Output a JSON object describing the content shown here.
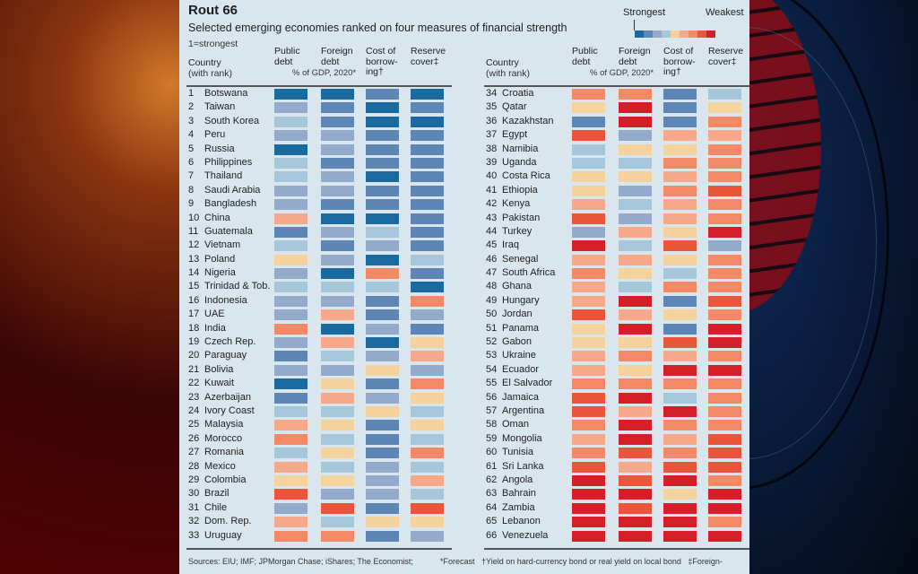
{
  "background": {
    "left": "orange-red studio glow",
    "right": "blue globe graphic"
  },
  "chart_data": {
    "type": "heatmap",
    "title": "Rout 66",
    "subtitle": "Selected emerging economies ranked on four measures of financial strength",
    "note": "1=strongest",
    "legend": {
      "low_label": "Strongest",
      "high_label": "Weakest",
      "placement": "top-right",
      "levels": 9,
      "colors": [
        "#1a6aa0",
        "#5e86b5",
        "#94aacb",
        "#a6c6da",
        "#f3d29d",
        "#f6a98a",
        "#f28a68",
        "#e9563c",
        "#d21f2a"
      ]
    },
    "country_header": "Country",
    "country_subheader": "(with rank)",
    "columns": [
      {
        "key": "public_debt",
        "label_lines": [
          "Public",
          "debt"
        ]
      },
      {
        "key": "foreign_debt",
        "label_lines": [
          "Foreign",
          "debt"
        ]
      },
      {
        "key": "cost_of_borrowing",
        "label_lines": [
          "Cost of",
          "borrow-",
          "ing†"
        ]
      },
      {
        "key": "reserve_cover",
        "label_lines": [
          "Reserve",
          "cover‡"
        ]
      }
    ],
    "unit_note": "% of GDP, 2020*",
    "value_meaning": "color level 1 (strongest) to 9 (weakest)",
    "rows": [
      {
        "rank": 1,
        "country": "Botswana",
        "values": [
          1,
          1,
          2,
          1
        ]
      },
      {
        "rank": 2,
        "country": "Taiwan",
        "values": [
          3,
          2,
          1,
          2
        ]
      },
      {
        "rank": 3,
        "country": "South Korea",
        "values": [
          4,
          2,
          1,
          1
        ]
      },
      {
        "rank": 4,
        "country": "Peru",
        "values": [
          3,
          3,
          2,
          2
        ]
      },
      {
        "rank": 5,
        "country": "Russia",
        "values": [
          1,
          3,
          2,
          2
        ]
      },
      {
        "rank": 6,
        "country": "Philippines",
        "values": [
          4,
          2,
          2,
          2
        ]
      },
      {
        "rank": 7,
        "country": "Thailand",
        "values": [
          4,
          3,
          1,
          2
        ]
      },
      {
        "rank": 8,
        "country": "Saudi Arabia",
        "values": [
          3,
          3,
          2,
          2
        ]
      },
      {
        "rank": 9,
        "country": "Bangladesh",
        "values": [
          3,
          2,
          2,
          2
        ]
      },
      {
        "rank": 10,
        "country": "China",
        "values": [
          6,
          1,
          1,
          2
        ]
      },
      {
        "rank": 11,
        "country": "Guatemala",
        "values": [
          2,
          3,
          4,
          2
        ]
      },
      {
        "rank": 12,
        "country": "Vietnam",
        "values": [
          4,
          2,
          3,
          2
        ]
      },
      {
        "rank": 13,
        "country": "Poland",
        "values": [
          5,
          3,
          1,
          4
        ]
      },
      {
        "rank": 14,
        "country": "Nigeria",
        "values": [
          3,
          1,
          7,
          2
        ]
      },
      {
        "rank": 15,
        "country": "Trinidad & Tob.",
        "values": [
          4,
          4,
          4,
          1
        ]
      },
      {
        "rank": 16,
        "country": "Indonesia",
        "values": [
          3,
          3,
          2,
          7
        ]
      },
      {
        "rank": 17,
        "country": "UAE",
        "values": [
          3,
          6,
          2,
          3
        ]
      },
      {
        "rank": 18,
        "country": "India",
        "values": [
          7,
          1,
          3,
          2
        ]
      },
      {
        "rank": 19,
        "country": "Czech Rep.",
        "values": [
          3,
          6,
          1,
          5
        ]
      },
      {
        "rank": 20,
        "country": "Paraguay",
        "values": [
          2,
          4,
          3,
          6
        ]
      },
      {
        "rank": 21,
        "country": "Bolivia",
        "values": [
          3,
          3,
          5,
          3
        ]
      },
      {
        "rank": 22,
        "country": "Kuwait",
        "values": [
          1,
          5,
          2,
          7
        ]
      },
      {
        "rank": 23,
        "country": "Azerbaijan",
        "values": [
          2,
          6,
          3,
          5
        ]
      },
      {
        "rank": 24,
        "country": "Ivory Coast",
        "values": [
          4,
          4,
          5,
          4
        ]
      },
      {
        "rank": 25,
        "country": "Malaysia",
        "values": [
          6,
          5,
          2,
          5
        ]
      },
      {
        "rank": 26,
        "country": "Morocco",
        "values": [
          7,
          4,
          2,
          4
        ]
      },
      {
        "rank": 27,
        "country": "Romania",
        "values": [
          4,
          5,
          2,
          7
        ]
      },
      {
        "rank": 28,
        "country": "Mexico",
        "values": [
          6,
          4,
          3,
          4
        ]
      },
      {
        "rank": 29,
        "country": "Colombia",
        "values": [
          5,
          5,
          3,
          6
        ]
      },
      {
        "rank": 30,
        "country": "Brazil",
        "values": [
          8,
          3,
          3,
          4
        ]
      },
      {
        "rank": 31,
        "country": "Chile",
        "values": [
          3,
          8,
          2,
          8
        ]
      },
      {
        "rank": 32,
        "country": "Dom. Rep.",
        "values": [
          6,
          4,
          5,
          5
        ]
      },
      {
        "rank": 33,
        "country": "Uruguay",
        "values": [
          7,
          7,
          2,
          3
        ]
      },
      {
        "rank": 34,
        "country": "Croatia",
        "values": [
          7,
          7,
          2,
          4
        ]
      },
      {
        "rank": 35,
        "country": "Qatar",
        "values": [
          5,
          9,
          2,
          5
        ]
      },
      {
        "rank": 36,
        "country": "Kazakhstan",
        "values": [
          2,
          9,
          2,
          7
        ]
      },
      {
        "rank": 37,
        "country": "Egypt",
        "values": [
          8,
          3,
          6,
          6
        ]
      },
      {
        "rank": 38,
        "country": "Namibia",
        "values": [
          4,
          5,
          5,
          7
        ]
      },
      {
        "rank": 39,
        "country": "Uganda",
        "values": [
          4,
          4,
          7,
          7
        ]
      },
      {
        "rank": 40,
        "country": "Costa Rica",
        "values": [
          5,
          5,
          6,
          7
        ]
      },
      {
        "rank": 41,
        "country": "Ethiopia",
        "values": [
          5,
          3,
          7,
          8
        ]
      },
      {
        "rank": 42,
        "country": "Kenya",
        "values": [
          6,
          4,
          6,
          7
        ]
      },
      {
        "rank": 43,
        "country": "Pakistan",
        "values": [
          8,
          3,
          6,
          7
        ]
      },
      {
        "rank": 44,
        "country": "Turkey",
        "values": [
          3,
          6,
          5,
          9
        ]
      },
      {
        "rank": 45,
        "country": "Iraq",
        "values": [
          9,
          4,
          8,
          3
        ]
      },
      {
        "rank": 46,
        "country": "Senegal",
        "values": [
          6,
          6,
          5,
          7
        ]
      },
      {
        "rank": 47,
        "country": "South Africa",
        "values": [
          7,
          5,
          4,
          7
        ]
      },
      {
        "rank": 48,
        "country": "Ghana",
        "values": [
          6,
          4,
          7,
          7
        ]
      },
      {
        "rank": 49,
        "country": "Hungary",
        "values": [
          6,
          9,
          2,
          8
        ]
      },
      {
        "rank": 50,
        "country": "Jordan",
        "values": [
          8,
          6,
          5,
          7
        ]
      },
      {
        "rank": 51,
        "country": "Panama",
        "values": [
          5,
          9,
          2,
          9
        ]
      },
      {
        "rank": 52,
        "country": "Gabon",
        "values": [
          5,
          5,
          8,
          9
        ]
      },
      {
        "rank": 53,
        "country": "Ukraine",
        "values": [
          6,
          7,
          6,
          7
        ]
      },
      {
        "rank": 54,
        "country": "Ecuador",
        "values": [
          6,
          5,
          9,
          9
        ]
      },
      {
        "rank": 55,
        "country": "El Salvador",
        "values": [
          7,
          7,
          7,
          7
        ]
      },
      {
        "rank": 56,
        "country": "Jamaica",
        "values": [
          8,
          9,
          4,
          7
        ]
      },
      {
        "rank": 57,
        "country": "Argentina",
        "values": [
          8,
          6,
          9,
          7
        ]
      },
      {
        "rank": 58,
        "country": "Oman",
        "values": [
          7,
          9,
          7,
          7
        ]
      },
      {
        "rank": 59,
        "country": "Mongolia",
        "values": [
          6,
          9,
          6,
          8
        ]
      },
      {
        "rank": 60,
        "country": "Tunisia",
        "values": [
          7,
          8,
          7,
          8
        ]
      },
      {
        "rank": 61,
        "country": "Sri Lanka",
        "values": [
          8,
          6,
          8,
          8
        ]
      },
      {
        "rank": 62,
        "country": "Angola",
        "values": [
          9,
          8,
          9,
          7
        ]
      },
      {
        "rank": 63,
        "country": "Bahrain",
        "values": [
          9,
          9,
          5,
          9
        ]
      },
      {
        "rank": 64,
        "country": "Zambia",
        "values": [
          9,
          8,
          9,
          9
        ]
      },
      {
        "rank": 65,
        "country": "Lebanon",
        "values": [
          9,
          9,
          9,
          7
        ]
      },
      {
        "rank": 66,
        "country": "Venezuela",
        "values": [
          9,
          9,
          9,
          9
        ]
      }
    ],
    "footnotes": {
      "sources": "Sources: EIU; IMF; JPMorgan Chase; iShares; The Economist;",
      "forecast": "*Forecast",
      "dagger": "†Yield on hard-currency bond or real yield on local bond",
      "double_dagger": "‡Foreign-"
    }
  }
}
